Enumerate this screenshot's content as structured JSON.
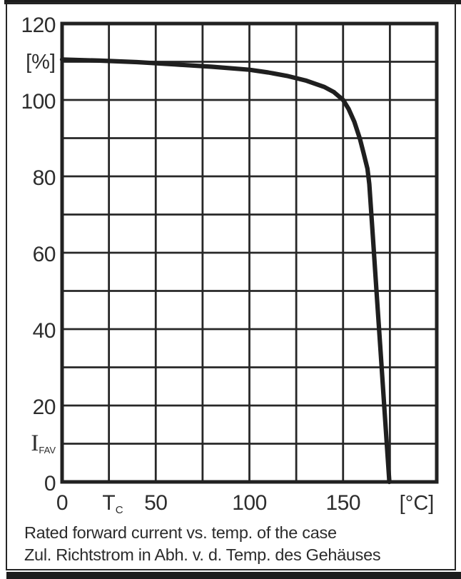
{
  "colors": {
    "curve": "#1f1f1f",
    "grid": "#272727",
    "plot_border": "#222222",
    "frame": "#1d1d1d",
    "text": "#2d2d2d",
    "background": "#ffffff"
  },
  "chart_data": {
    "type": "line",
    "title": "Rated forward current vs. temp. of the case",
    "subtitle": "Zul. Richtstrom in Abh. v. d. Temp. des Gehäuses",
    "grid": true,
    "legend": "none",
    "x_axis": {
      "quantity": "T",
      "quantity_subscript": "C",
      "unit": "[°C]",
      "min": 0,
      "max": 200,
      "grid_step": 25,
      "ticks": [
        {
          "label": "0",
          "value": 0
        },
        {
          "label": "50",
          "value": 50
        },
        {
          "label": "100",
          "value": 100
        },
        {
          "label": "150",
          "value": 150
        }
      ]
    },
    "y_axis": {
      "quantity": "I",
      "quantity_subscript": "FAV",
      "unit": "[%]",
      "min": 0,
      "max": 120,
      "grid_step": 10,
      "ticks": [
        {
          "label": "120",
          "value": 120
        },
        {
          "label": "100",
          "value": 100
        },
        {
          "label": "80",
          "value": 80
        },
        {
          "label": "60",
          "value": 60
        },
        {
          "label": "40",
          "value": 40
        },
        {
          "label": "20",
          "value": 20
        },
        {
          "label": "0",
          "value": 0
        }
      ]
    },
    "series": [
      {
        "name": "rated-forward-current-derating",
        "points": [
          [
            0,
            110.6
          ],
          [
            20,
            110.3
          ],
          [
            40,
            109.9
          ],
          [
            60,
            109.3
          ],
          [
            80,
            108.7
          ],
          [
            100,
            107.9
          ],
          [
            110,
            107.2
          ],
          [
            120,
            106.3
          ],
          [
            130,
            105.1
          ],
          [
            140,
            103.4
          ],
          [
            145,
            102.1
          ],
          [
            150,
            100
          ],
          [
            153,
            97.6
          ],
          [
            156,
            94.3
          ],
          [
            159,
            89.8
          ],
          [
            161,
            86
          ],
          [
            163,
            82
          ],
          [
            164,
            78
          ],
          [
            166,
            63.4
          ],
          [
            168,
            48.8
          ],
          [
            170,
            34.2
          ],
          [
            172,
            19.6
          ],
          [
            174,
            5
          ],
          [
            174.7,
            0
          ]
        ]
      }
    ]
  }
}
